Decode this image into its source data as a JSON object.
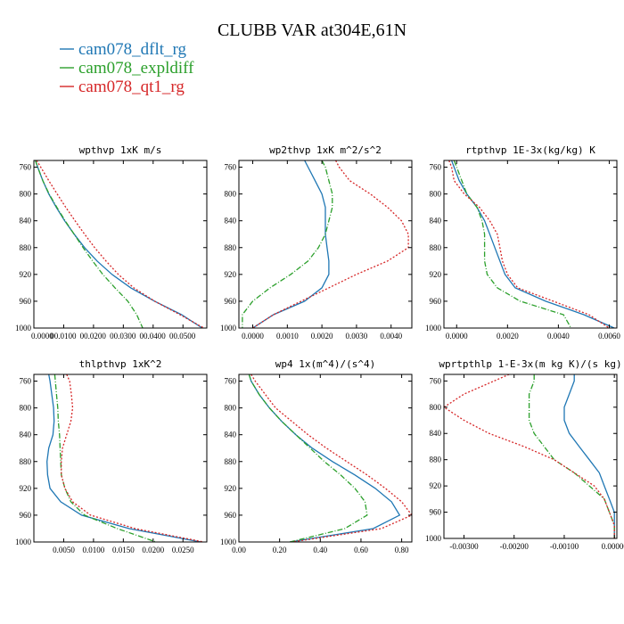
{
  "figure": {
    "title": "CLUBB VAR at304E,61N",
    "legend": [
      {
        "label": "cam078_dflt_rg",
        "color": "#1f77b4"
      },
      {
        "label": "cam078_expldiff",
        "color": "#2ca02c"
      },
      {
        "label": "cam078_qt1_rg",
        "color": "#d62728"
      }
    ]
  },
  "chart_data": [
    {
      "type": "line",
      "title": "wpthvp  1xK m/s",
      "xlim": [
        0.0,
        0.058
      ],
      "ylim": [
        1000,
        750
      ],
      "xticks": [
        0.0,
        0.01,
        0.02,
        0.03,
        0.04,
        0.05
      ],
      "xtick_labels": [
        "0.0000",
        "00.0100",
        "00.0200",
        "00.0300",
        "00.0400",
        "00.0500"
      ],
      "yticks": [
        760,
        800,
        840,
        880,
        920,
        960,
        1000
      ],
      "y": [
        750,
        760,
        780,
        800,
        820,
        840,
        860,
        880,
        900,
        920,
        940,
        960,
        980,
        1000
      ],
      "series": [
        {
          "name": "cam078_dflt_rg",
          "color": "#1f77b4",
          "dash": "",
          "values": [
            0.0005,
            0.0013,
            0.003,
            0.005,
            0.0075,
            0.0103,
            0.0135,
            0.017,
            0.0212,
            0.0262,
            0.0325,
            0.0405,
            0.0495,
            0.0565
          ]
        },
        {
          "name": "cam078_expldiff",
          "color": "#2ca02c",
          "dash": "6 2 1 2",
          "values": [
            0.0005,
            0.0013,
            0.003,
            0.0051,
            0.0077,
            0.0105,
            0.0135,
            0.0165,
            0.0197,
            0.0231,
            0.0272,
            0.0315,
            0.0345,
            0.0365
          ]
        },
        {
          "name": "cam078_qt1_rg",
          "color": "#d62728",
          "dash": "2 2",
          "values": [
            0.0009,
            0.0023,
            0.005,
            0.0078,
            0.0107,
            0.0138,
            0.017,
            0.0204,
            0.0242,
            0.0283,
            0.0335,
            0.0405,
            0.049,
            0.057
          ]
        }
      ]
    },
    {
      "type": "line",
      "title": "wp2thvp  1xK m^2/s^2",
      "xlim": [
        -0.0004,
        0.0046
      ],
      "ylim": [
        1000,
        750
      ],
      "xticks": [
        0.0,
        0.001,
        0.002,
        0.003,
        0.004
      ],
      "xtick_labels": [
        "0.0000",
        "0.0010",
        "0.0020",
        "0.0030",
        "0.0040"
      ],
      "yticks": [
        760,
        800,
        840,
        880,
        920,
        960,
        1000
      ],
      "y": [
        750,
        760,
        780,
        800,
        820,
        840,
        860,
        880,
        900,
        920,
        940,
        960,
        980,
        1000
      ],
      "series": [
        {
          "name": "cam078_dflt_rg",
          "color": "#1f77b4",
          "dash": "",
          "values": [
            0.0015,
            0.0016,
            0.0018,
            0.002,
            0.0021,
            0.0021,
            0.0021,
            0.00215,
            0.0022,
            0.0022,
            0.002,
            0.0015,
            0.0006,
            0.0
          ]
        },
        {
          "name": "cam078_expldiff",
          "color": "#2ca02c",
          "dash": "6 2 1 2",
          "values": [
            0.002,
            0.0021,
            0.0022,
            0.0023,
            0.0023,
            0.0022,
            0.0021,
            0.0019,
            0.0016,
            0.0011,
            0.0005,
            0.0,
            -0.0003,
            -0.0003
          ]
        },
        {
          "name": "cam078_qt1_rg",
          "color": "#d62728",
          "dash": "2 2",
          "values": [
            0.0024,
            0.0025,
            0.0028,
            0.0034,
            0.0039,
            0.0043,
            0.0045,
            0.0045,
            0.0039,
            0.003,
            0.0022,
            0.0014,
            0.0006,
            0.0
          ]
        }
      ]
    },
    {
      "type": "line",
      "title": "rtpthvp  1E-3x(kg/kg) K",
      "xlim": [
        -0.0005,
        0.0063
      ],
      "ylim": [
        1000,
        750
      ],
      "xticks": [
        0.0,
        0.002,
        0.004,
        0.006
      ],
      "xtick_labels": [
        "0.0000",
        "0.0020",
        "0.0040",
        "0.0060"
      ],
      "yticks": [
        760,
        800,
        840,
        880,
        920,
        960,
        1000
      ],
      "y": [
        750,
        760,
        780,
        800,
        820,
        840,
        860,
        880,
        900,
        920,
        940,
        960,
        980,
        1000
      ],
      "series": [
        {
          "name": "cam078_dflt_rg",
          "color": "#1f77b4",
          "dash": "",
          "values": [
            -0.0002,
            -0.0001,
            0.0001,
            0.0004,
            0.0008,
            0.0011,
            0.0013,
            0.0015,
            0.0017,
            0.0019,
            0.0023,
            0.0035,
            0.005,
            0.0062
          ]
        },
        {
          "name": "cam078_expldiff",
          "color": "#2ca02c",
          "dash": "6 2 1 2",
          "values": [
            -0.0001,
            0.0,
            0.0002,
            0.0004,
            0.0008,
            0.001,
            0.0011,
            0.0011,
            0.0011,
            0.0012,
            0.0016,
            0.0025,
            0.0042,
            0.0045
          ]
        },
        {
          "name": "cam078_qt1_rg",
          "color": "#d62728",
          "dash": "2 2",
          "values": [
            -0.0003,
            -0.0002,
            -0.0001,
            0.0003,
            0.0009,
            0.0013,
            0.0016,
            0.0017,
            0.0018,
            0.002,
            0.0024,
            0.0038,
            0.0052,
            0.006
          ]
        }
      ]
    },
    {
      "type": "line",
      "title": "thlpthvp  1xK^2",
      "xlim": [
        0.0,
        0.029
      ],
      "ylim": [
        1000,
        750
      ],
      "xticks": [
        0.005,
        0.01,
        0.015,
        0.02,
        0.025
      ],
      "xtick_labels": [
        "0.0050",
        "0.0100",
        "0.0150",
        "0.0200",
        "0.0250"
      ],
      "yticks": [
        760,
        800,
        840,
        880,
        920,
        960,
        1000
      ],
      "y": [
        750,
        760,
        780,
        800,
        820,
        840,
        860,
        880,
        900,
        920,
        940,
        960,
        980,
        1000
      ],
      "series": [
        {
          "name": "cam078_dflt_rg",
          "color": "#1f77b4",
          "dash": "",
          "values": [
            0.0025,
            0.0027,
            0.003,
            0.0033,
            0.0034,
            0.0032,
            0.0025,
            0.0022,
            0.0023,
            0.0027,
            0.0045,
            0.008,
            0.016,
            0.028
          ]
        },
        {
          "name": "cam078_expldiff",
          "color": "#2ca02c",
          "dash": "6 2 1 2",
          "values": [
            0.0035,
            0.0036,
            0.0038,
            0.004,
            0.0041,
            0.0043,
            0.0044,
            0.0045,
            0.0046,
            0.0052,
            0.0062,
            0.0085,
            0.014,
            0.0205
          ]
        },
        {
          "name": "cam078_qt1_rg",
          "color": "#d62728",
          "dash": "2 2",
          "values": [
            0.0055,
            0.006,
            0.0063,
            0.0065,
            0.0062,
            0.0055,
            0.0048,
            0.0046,
            0.0046,
            0.0052,
            0.0065,
            0.0095,
            0.017,
            0.0285
          ]
        }
      ]
    },
    {
      "type": "line",
      "title": "wp4  1x(m^4)/(s^4)",
      "xlim": [
        0.0,
        0.85
      ],
      "ylim": [
        1000,
        750
      ],
      "xticks": [
        0.0,
        0.2,
        0.4,
        0.6,
        0.8
      ],
      "xtick_labels": [
        "0.00",
        "0.20",
        "0.40",
        "0.60",
        "0.80"
      ],
      "yticks": [
        760,
        800,
        840,
        880,
        920,
        960,
        1000
      ],
      "y": [
        750,
        760,
        780,
        800,
        820,
        840,
        860,
        880,
        900,
        920,
        940,
        960,
        980,
        1000
      ],
      "series": [
        {
          "name": "cam078_dflt_rg",
          "color": "#1f77b4",
          "dash": "",
          "values": [
            0.05,
            0.06,
            0.1,
            0.15,
            0.21,
            0.28,
            0.36,
            0.46,
            0.57,
            0.67,
            0.75,
            0.79,
            0.66,
            0.25
          ]
        },
        {
          "name": "cam078_expldiff",
          "color": "#2ca02c",
          "dash": "6 2 1 2",
          "values": [
            0.05,
            0.06,
            0.1,
            0.15,
            0.21,
            0.28,
            0.35,
            0.42,
            0.5,
            0.57,
            0.62,
            0.63,
            0.52,
            0.25
          ]
        },
        {
          "name": "cam078_qt1_rg",
          "color": "#d62728",
          "dash": "2 2",
          "values": [
            0.06,
            0.08,
            0.13,
            0.18,
            0.26,
            0.34,
            0.43,
            0.53,
            0.63,
            0.72,
            0.8,
            0.85,
            0.7,
            0.26
          ]
        }
      ]
    },
    {
      "type": "line",
      "title": "wprtpthlp  1-E-3x(m kg K)/(s kg)",
      "xlim": [
        -0.0034,
        5e-05
      ],
      "ylim": [
        1000,
        750
      ],
      "xticks": [
        -0.003,
        -0.002,
        -0.001,
        0.0
      ],
      "xtick_labels": [
        "-0.00300",
        "-0.00200",
        "-0.00100",
        "0.00000"
      ],
      "yticks": [
        760,
        800,
        840,
        880,
        920,
        960,
        1000
      ],
      "y": [
        750,
        760,
        780,
        800,
        820,
        840,
        860,
        880,
        900,
        920,
        940,
        960,
        980,
        1000
      ],
      "series": [
        {
          "name": "cam078_dflt_rg",
          "color": "#1f77b4",
          "dash": "",
          "values": [
            -0.0008,
            -0.0008,
            -0.0009,
            -0.001,
            -0.001,
            -0.0009,
            -0.0007,
            -0.0005,
            -0.0003,
            -0.0002,
            -0.0001,
            0.0,
            0.0,
            0.0
          ]
        },
        {
          "name": "cam078_expldiff",
          "color": "#2ca02c",
          "dash": "6 2 1 2",
          "values": [
            -0.0016,
            -0.0016,
            -0.0017,
            -0.0017,
            -0.0017,
            -0.0016,
            -0.0014,
            -0.0012,
            -0.0008,
            -0.0005,
            -0.0002,
            -0.0001,
            0.0,
            0.0
          ]
        },
        {
          "name": "cam078_qt1_rg",
          "color": "#d62728",
          "dash": "2 2",
          "values": [
            -0.0021,
            -0.0024,
            -0.003,
            -0.0034,
            -0.003,
            -0.0025,
            -0.0018,
            -0.0012,
            -0.0008,
            -0.0004,
            -0.0002,
            -0.0001,
            0.0,
            0.0
          ]
        }
      ]
    }
  ]
}
